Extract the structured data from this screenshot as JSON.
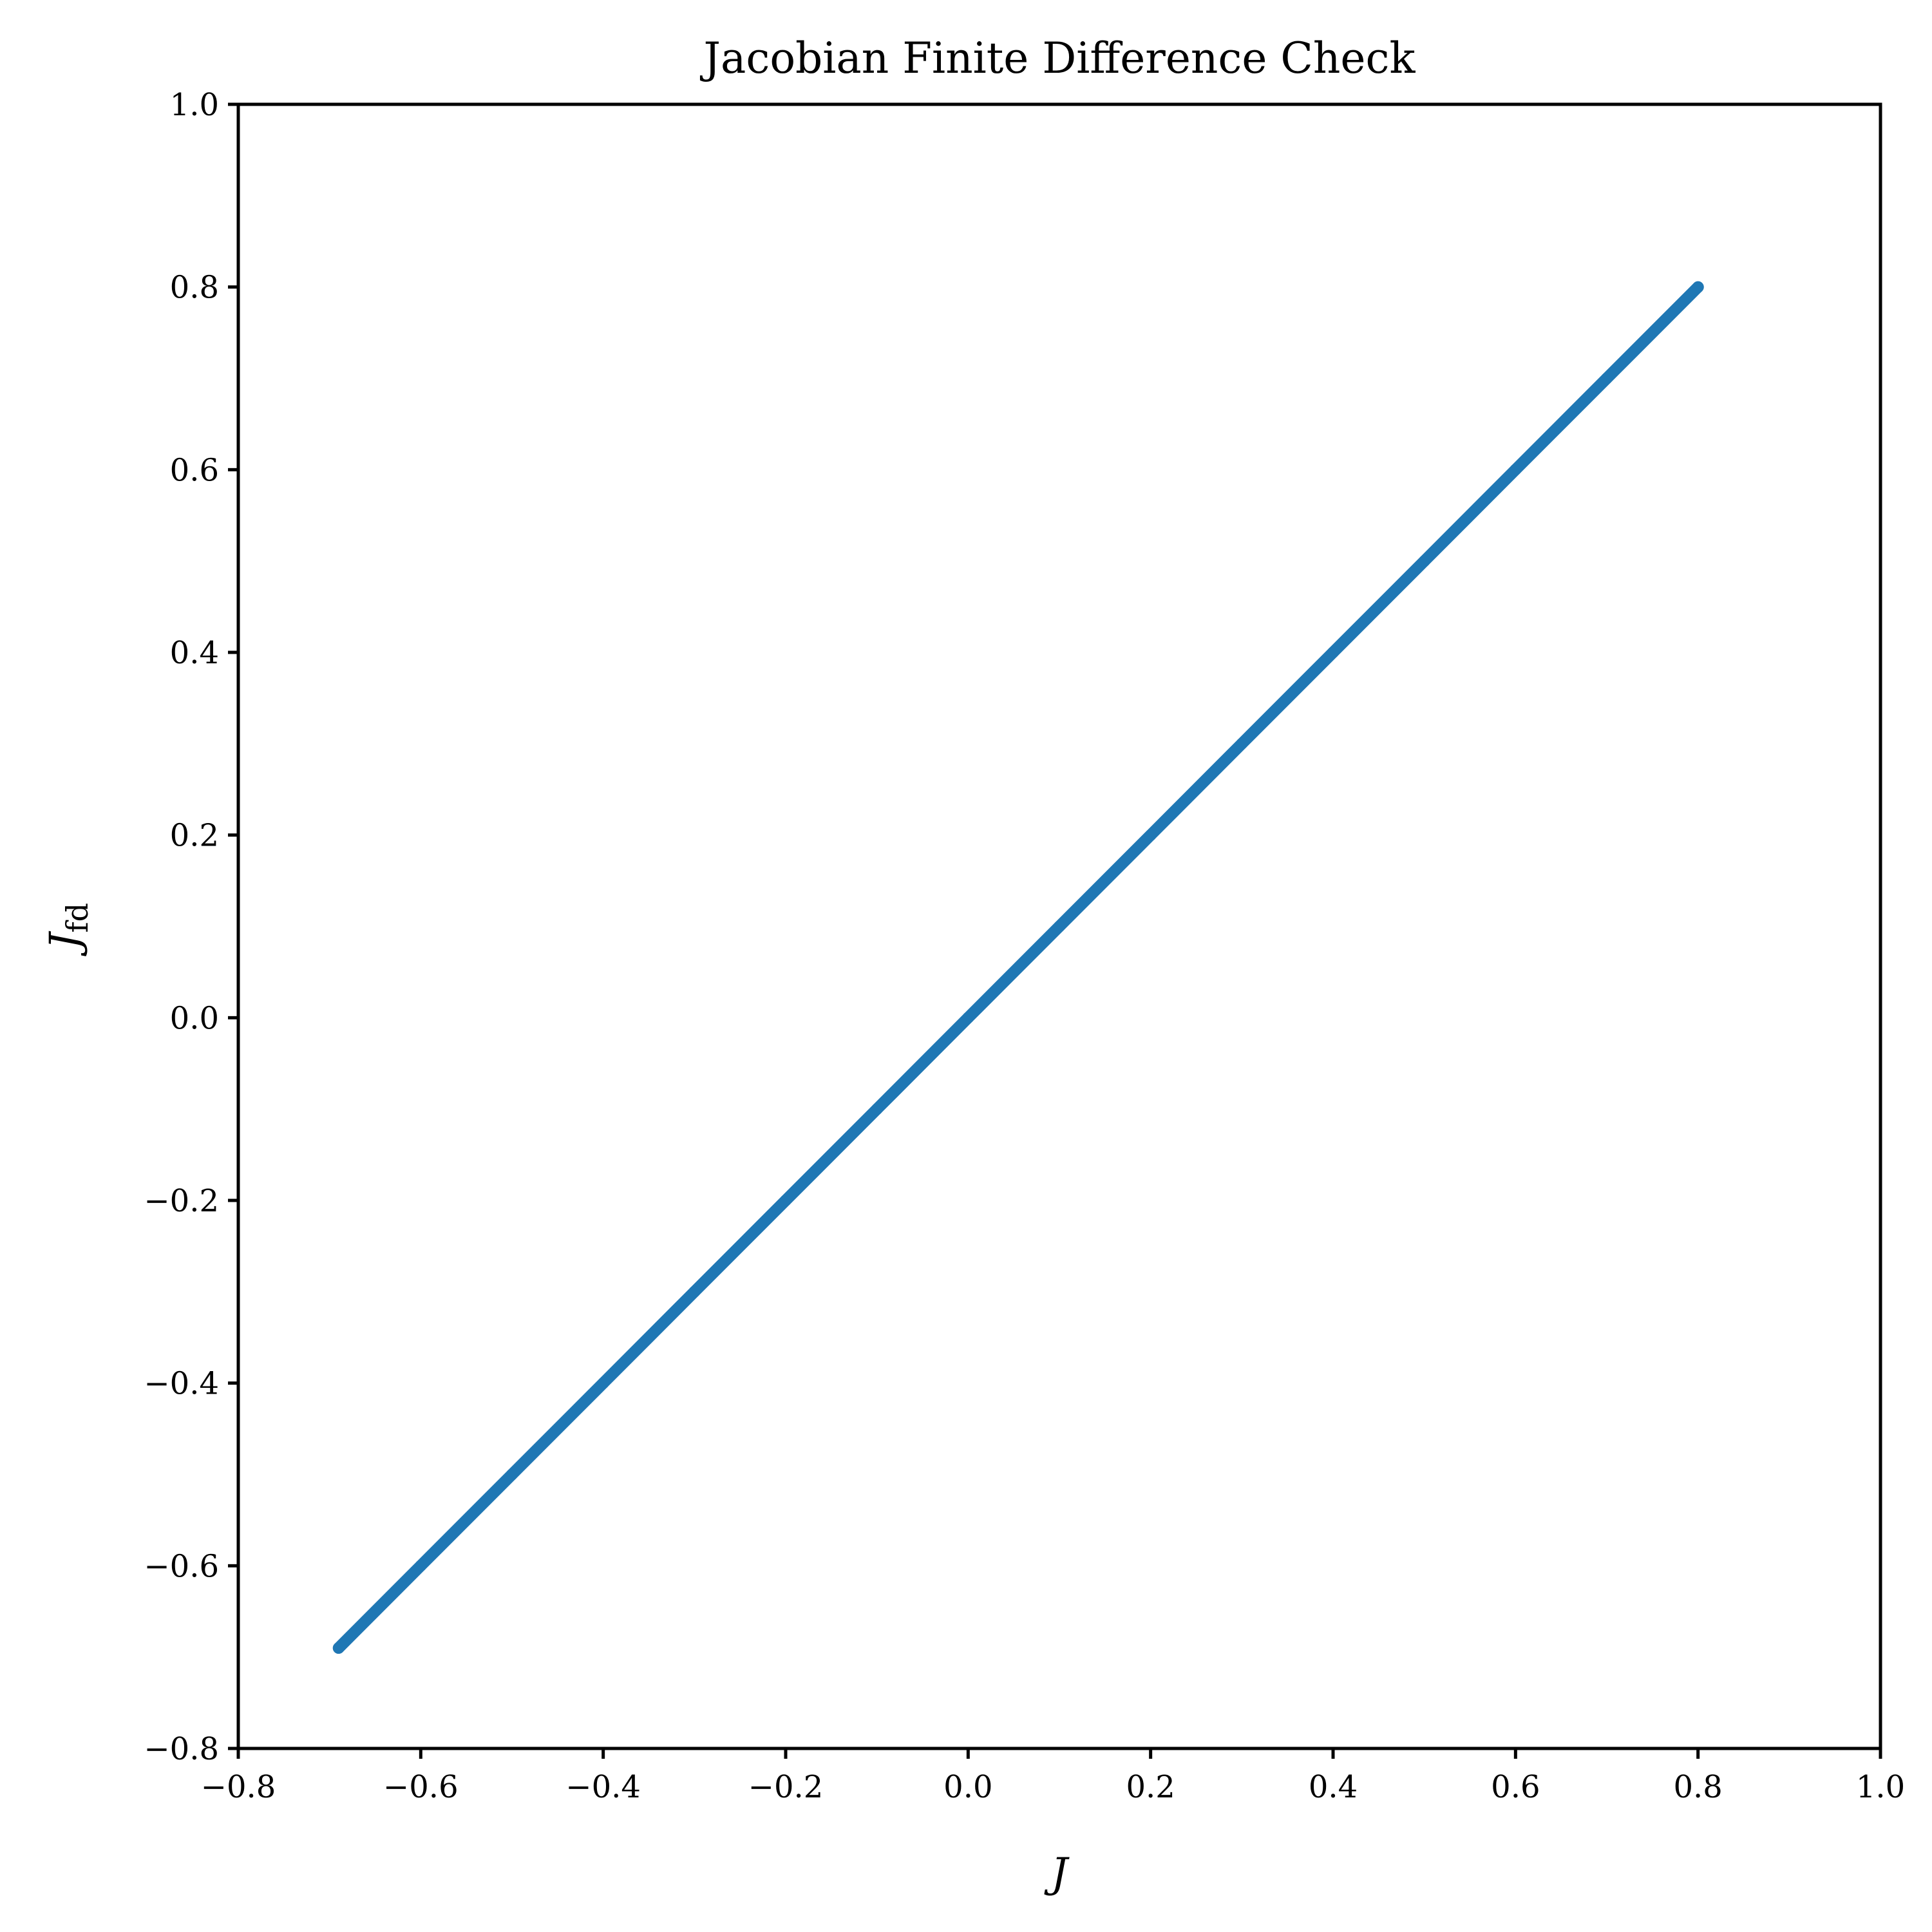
{
  "chart_data": {
    "type": "scatter",
    "title": "Jacobian Finite Difference Check",
    "xlabel": "J",
    "ylabel": "J",
    "ylabel_subscript": "fd",
    "xlim": [
      -0.8,
      1.0
    ],
    "ylim": [
      -0.8,
      1.0
    ],
    "x_ticks": [
      -0.8,
      -0.6,
      -0.4,
      -0.2,
      0.0,
      0.2,
      0.4,
      0.6,
      0.8,
      1.0
    ],
    "y_ticks": [
      -0.8,
      -0.6,
      -0.4,
      -0.2,
      0.0,
      0.2,
      0.4,
      0.6,
      0.8,
      1.0
    ],
    "x_tick_labels": [
      "−0.8",
      "−0.6",
      "−0.4",
      "−0.2",
      "0.0",
      "0.2",
      "0.4",
      "0.6",
      "0.8",
      "1.0"
    ],
    "y_tick_labels": [
      "−0.8",
      "−0.6",
      "−0.4",
      "−0.2",
      "0.0",
      "0.2",
      "0.4",
      "0.6",
      "0.8",
      "1.0"
    ],
    "grid": false,
    "legend": "none",
    "series": [
      {
        "color": "#1f77b4",
        "x": [
          -0.69,
          -0.6,
          -0.5,
          -0.4,
          -0.3,
          -0.2,
          -0.1,
          0.0,
          0.1,
          0.2,
          0.3,
          0.4,
          0.5,
          0.6,
          0.7,
          0.8
        ],
        "y": [
          -0.69,
          -0.6,
          -0.5,
          -0.4,
          -0.3,
          -0.2,
          -0.1,
          0.0,
          0.1,
          0.2,
          0.3,
          0.4,
          0.5,
          0.6,
          0.7,
          0.8
        ]
      }
    ]
  }
}
